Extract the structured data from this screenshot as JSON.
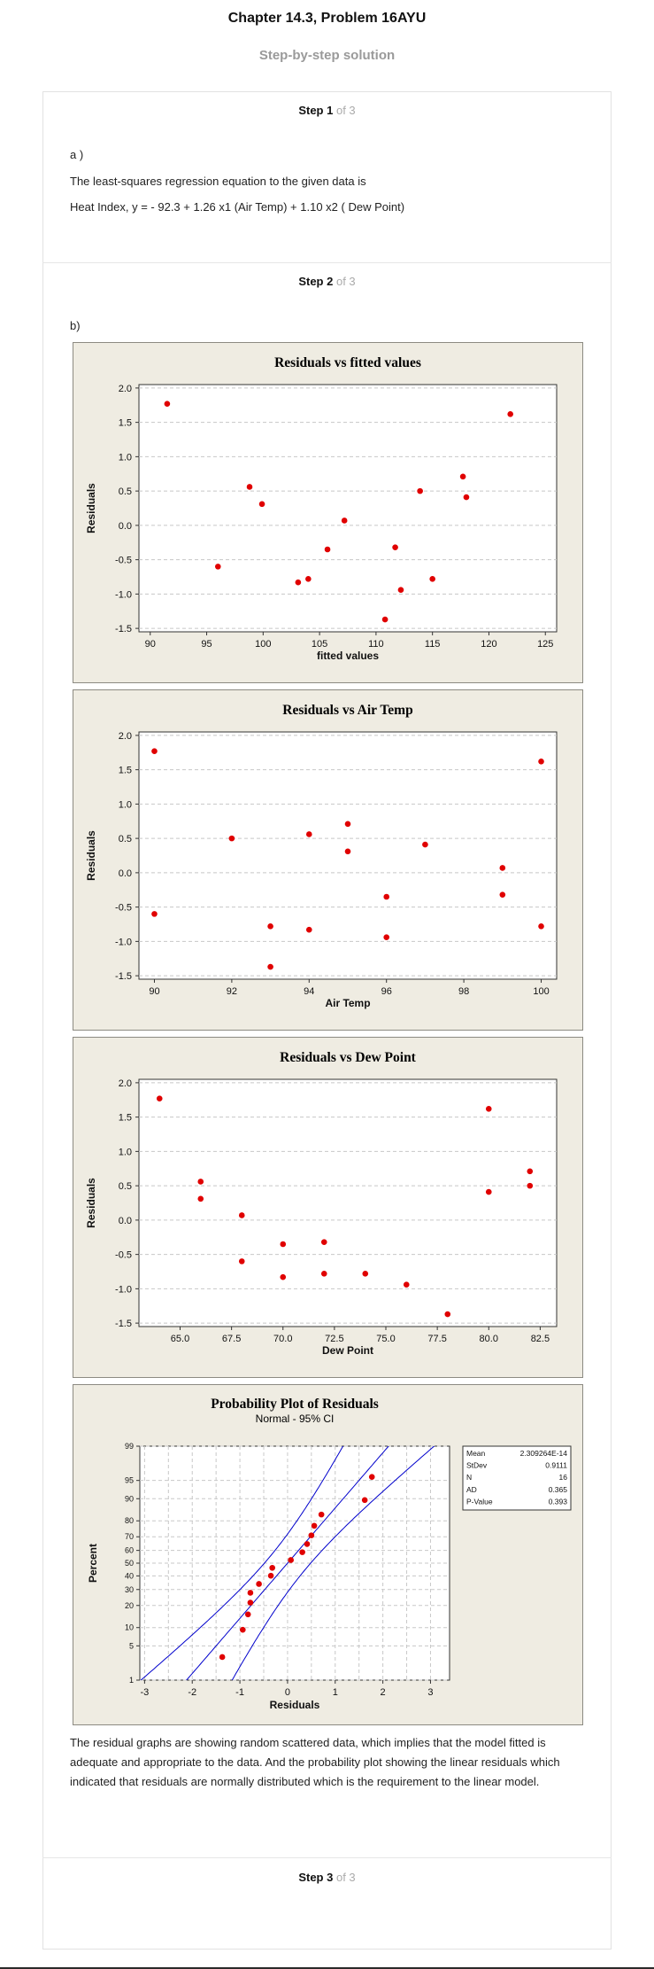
{
  "header": {
    "title": "Chapter 14.3, Problem 16AYU",
    "subtitle": "Step-by-step solution"
  },
  "step1": {
    "label": "Step 1",
    "of": "of 3",
    "part": "a )",
    "line1": "The least-squares regression equation to the given data is",
    "line2": "Heat Index, y = - 92.3 + 1.26 x1 (Air Temp) + 1.10 x2 ( Dew Point)"
  },
  "step2": {
    "label": "Step 2",
    "of": "of 3",
    "part": "b)",
    "conclusion": "The residual graphs are showing random scattered data, which implies that the model fitted is adequate and appropriate to the data. And the probability plot showing the linear residuals which indicated that residuals are normally distributed which is the requirement to the linear model."
  },
  "step3": {
    "label": "Step 3",
    "of": "of 3"
  },
  "colors": {
    "panel_bg": "#efece2",
    "point": "#e00000",
    "ci_line": "#0000cc",
    "grid": "#c8c8c8"
  },
  "chart_data": [
    {
      "type": "scatter",
      "title": "Residuals vs fitted values",
      "xlabel": "fitted values",
      "ylabel": "Residuals",
      "xlim": [
        89,
        126
      ],
      "ylim": [
        -1.55,
        2.05
      ],
      "xticks": [
        90,
        95,
        100,
        105,
        110,
        115,
        120,
        125
      ],
      "yticks": [
        -1.5,
        -1.0,
        -0.5,
        0.0,
        0.5,
        1.0,
        1.5,
        2.0
      ],
      "points": [
        [
          91.5,
          1.77
        ],
        [
          96,
          -0.6
        ],
        [
          98.8,
          0.56
        ],
        [
          99.9,
          0.31
        ],
        [
          103.1,
          -0.83
        ],
        [
          104,
          -0.78
        ],
        [
          105.7,
          -0.35
        ],
        [
          107.2,
          0.07
        ],
        [
          110.8,
          -1.37
        ],
        [
          111.7,
          -0.32
        ],
        [
          112.2,
          -0.94
        ],
        [
          113.9,
          0.5
        ],
        [
          115,
          -0.78
        ],
        [
          117.7,
          0.71
        ],
        [
          118,
          0.41
        ],
        [
          121.9,
          1.62
        ]
      ],
      "grid": "horizontal dashed"
    },
    {
      "type": "scatter",
      "title": "Residuals vs Air Temp",
      "xlabel": "Air Temp",
      "ylabel": "Residuals",
      "xlim": [
        89.6,
        100.4
      ],
      "ylim": [
        -1.55,
        2.05
      ],
      "xticks": [
        90,
        92,
        94,
        96,
        98,
        100
      ],
      "yticks": [
        -1.5,
        -1.0,
        -0.5,
        0.0,
        0.5,
        1.0,
        1.5,
        2.0
      ],
      "points": [
        [
          90,
          1.77
        ],
        [
          90,
          -0.6
        ],
        [
          92,
          0.5
        ],
        [
          93,
          -0.78
        ],
        [
          93,
          -1.37
        ],
        [
          94,
          0.56
        ],
        [
          94,
          -0.83
        ],
        [
          95,
          0.71
        ],
        [
          95,
          0.31
        ],
        [
          96,
          -0.35
        ],
        [
          96,
          -0.94
        ],
        [
          97,
          0.41
        ],
        [
          99,
          0.07
        ],
        [
          99,
          -0.32
        ],
        [
          100,
          1.62
        ],
        [
          100,
          -0.78
        ]
      ],
      "grid": "horizontal dashed"
    },
    {
      "type": "scatter",
      "title": "Residuals vs Dew Point",
      "xlabel": "Dew Point",
      "ylabel": "Residuals",
      "xlim": [
        63,
        83.3
      ],
      "ylim": [
        -1.55,
        2.05
      ],
      "xticks": [
        "65.0",
        "67.5",
        "70.0",
        "72.5",
        "75.0",
        "77.5",
        "80.0",
        "82.5"
      ],
      "yticks": [
        -1.5,
        -1.0,
        -0.5,
        0.0,
        0.5,
        1.0,
        1.5,
        2.0
      ],
      "points": [
        [
          64,
          1.77
        ],
        [
          66,
          0.56
        ],
        [
          66,
          0.31
        ],
        [
          68,
          0.07
        ],
        [
          68,
          -0.6
        ],
        [
          70,
          -0.35
        ],
        [
          70,
          -0.83
        ],
        [
          72,
          -0.32
        ],
        [
          72,
          -0.78
        ],
        [
          74,
          -0.78
        ],
        [
          76,
          -0.94
        ],
        [
          78,
          -1.37
        ],
        [
          80,
          1.62
        ],
        [
          80,
          0.41
        ],
        [
          82,
          0.71
        ],
        [
          82,
          0.5
        ]
      ],
      "grid": "horizontal dashed"
    },
    {
      "type": "scatter",
      "title": "Probability Plot of Residuals",
      "subtitle": "Normal - 95% CI",
      "xlabel": "Residuals",
      "ylabel": "Percent",
      "xlim": [
        -3.1,
        3.4
      ],
      "xticks": [
        -3,
        -2,
        -1,
        0,
        1,
        2,
        3
      ],
      "yticks": [
        1,
        5,
        10,
        20,
        30,
        40,
        50,
        60,
        70,
        80,
        90,
        95,
        99
      ],
      "scale": "normal probability",
      "points": [
        [
          -1.37,
          3.09
        ],
        [
          -0.94,
          9.26
        ],
        [
          -0.83,
          15.43
        ],
        [
          -0.78,
          21.6
        ],
        [
          -0.78,
          27.78
        ],
        [
          -0.6,
          33.95
        ],
        [
          -0.35,
          40.12
        ],
        [
          -0.32,
          46.3
        ],
        [
          0.07,
          52.47
        ],
        [
          0.31,
          58.64
        ],
        [
          0.41,
          64.81
        ],
        [
          0.5,
          70.99
        ],
        [
          0.56,
          77.16
        ],
        [
          0.71,
          83.33
        ],
        [
          1.62,
          89.51
        ],
        [
          1.77,
          95.68
        ]
      ],
      "fit": {
        "mean": 0,
        "sd": 0.9111
      },
      "stats": [
        {
          "label": "Mean",
          "value": "2.309264E-14"
        },
        {
          "label": "StDev",
          "value": "0.9111"
        },
        {
          "label": "N",
          "value": "16"
        },
        {
          "label": "AD",
          "value": "0.365"
        },
        {
          "label": "P-Value",
          "value": "0.393"
        }
      ]
    }
  ]
}
